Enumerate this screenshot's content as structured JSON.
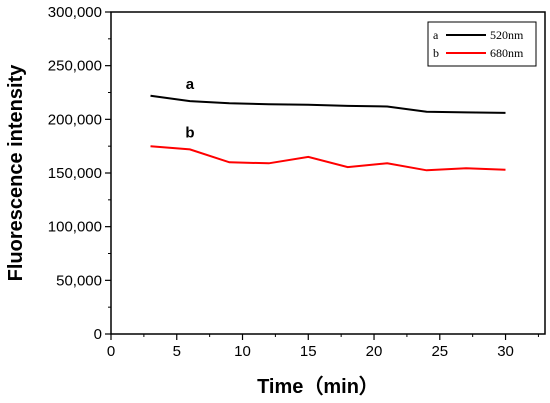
{
  "chart_data": {
    "type": "line",
    "xlabel": "Time（min）",
    "ylabel": "Fluorescence intensity",
    "xlim": [
      0,
      33
    ],
    "ylim": [
      0,
      300000
    ],
    "xticks": [
      0,
      5,
      10,
      15,
      20,
      25,
      30
    ],
    "yticks": [
      0,
      50000,
      100000,
      150000,
      200000,
      250000,
      300000
    ],
    "xtick_labels": [
      "0",
      "5",
      "10",
      "15",
      "20",
      "25",
      "30"
    ],
    "ytick_labels": [
      "0",
      "50,000",
      "100,000",
      "150,000",
      "200,000",
      "250,000",
      "300,000"
    ],
    "grid": false,
    "legend_position": "top-right",
    "series": [
      {
        "name": "520nm",
        "legend_prefix": "a",
        "curve_label": "a",
        "color": "#000000",
        "x": [
          3,
          6,
          9,
          12,
          15,
          18,
          21,
          24,
          27,
          30
        ],
        "y": [
          222000,
          217000,
          215000,
          214000,
          213500,
          212500,
          212000,
          207000,
          206500,
          206000
        ]
      },
      {
        "name": "680nm",
        "legend_prefix": "b",
        "curve_label": "b",
        "color": "#ff0000",
        "x": [
          3,
          6,
          9,
          12,
          15,
          18,
          21,
          24,
          27,
          30
        ],
        "y": [
          175000,
          172000,
          160000,
          159000,
          165000,
          155500,
          159000,
          152500,
          154500,
          153000
        ]
      }
    ]
  }
}
